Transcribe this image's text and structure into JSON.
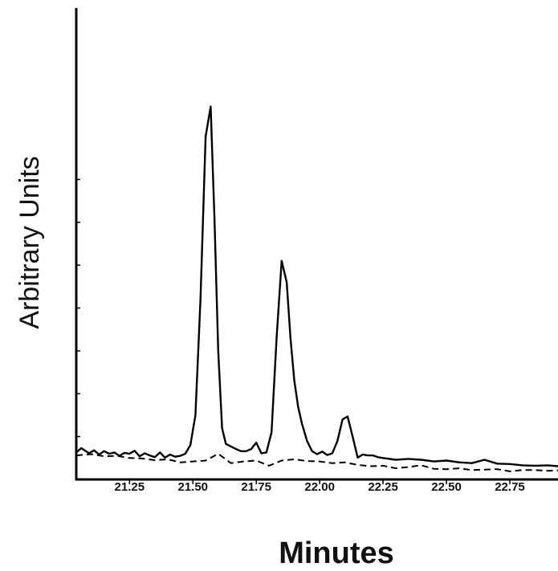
{
  "chart_data": {
    "type": "line",
    "title": "",
    "xlabel": "Minutes",
    "ylabel": "Arbitrary Units",
    "xlim": [
      21.04,
      22.94
    ],
    "ylim": [
      0,
      110
    ],
    "x_ticks": [
      "21.25",
      "21.50",
      "21.75",
      "22.00",
      "22.25",
      "22.50",
      "22.75"
    ],
    "y_tick_values": [
      10,
      20,
      30,
      40,
      50,
      60,
      70
    ],
    "y_tick_labels_shown": false,
    "grid": false,
    "legend": "none",
    "series": [
      {
        "style": "solid",
        "color": "#000000",
        "x": [
          21.04,
          21.06,
          21.09,
          21.11,
          21.13,
          21.15,
          21.17,
          21.19,
          21.21,
          21.23,
          21.25,
          21.27,
          21.29,
          21.31,
          21.33,
          21.35,
          21.37,
          21.39,
          21.41,
          21.43,
          21.45,
          21.47,
          21.49,
          21.51,
          21.53,
          21.55,
          21.57,
          21.585,
          21.6,
          21.615,
          21.63,
          21.65,
          21.67,
          21.69,
          21.71,
          21.73,
          21.75,
          21.77,
          21.79,
          21.81,
          21.83,
          21.85,
          21.87,
          21.885,
          21.9,
          21.915,
          21.93,
          21.95,
          21.97,
          21.99,
          22.01,
          22.03,
          22.05,
          22.07,
          22.09,
          22.11,
          22.13,
          22.15,
          22.17,
          22.19,
          22.21,
          22.23,
          22.25,
          22.3,
          22.35,
          22.4,
          22.45,
          22.5,
          22.55,
          22.6,
          22.65,
          22.7,
          22.75,
          22.8,
          22.85,
          22.9,
          22.94
        ],
        "values": [
          6.3,
          7.3,
          6.1,
          6.8,
          5.8,
          6.6,
          6.0,
          6.3,
          5.5,
          6.2,
          6.0,
          6.7,
          5.4,
          6.1,
          5.6,
          5.2,
          6.3,
          5.1,
          5.8,
          5.3,
          5.5,
          6.0,
          8.0,
          15.0,
          42.0,
          80.0,
          87.0,
          61.0,
          30.0,
          12.0,
          8.3,
          7.7,
          7.1,
          6.6,
          6.6,
          7.1,
          8.6,
          6.1,
          6.3,
          11.0,
          33.0,
          51.0,
          46.0,
          33.0,
          23.0,
          17.0,
          13.0,
          9.0,
          6.6,
          5.9,
          6.5,
          5.7,
          6.1,
          9.0,
          14.0,
          14.7,
          10.0,
          5.1,
          5.8,
          5.6,
          5.6,
          5.2,
          5.0,
          4.6,
          4.8,
          4.6,
          4.2,
          4.4,
          4.0,
          3.8,
          4.6,
          3.7,
          3.6,
          3.3,
          3.2,
          3.3,
          3.1
        ]
      },
      {
        "style": "dashed",
        "color": "#000000",
        "x": [
          21.04,
          21.1,
          21.15,
          21.2,
          21.25,
          21.3,
          21.35,
          21.4,
          21.45,
          21.5,
          21.55,
          21.6,
          21.65,
          21.7,
          21.75,
          21.8,
          21.85,
          21.9,
          21.95,
          22.0,
          22.05,
          22.1,
          22.15,
          22.2,
          22.25,
          22.3,
          22.35,
          22.4,
          22.45,
          22.5,
          22.55,
          22.6,
          22.65,
          22.7,
          22.75,
          22.8,
          22.85,
          22.9,
          22.94
        ],
        "values": [
          5.6,
          5.9,
          5.4,
          5.5,
          5.0,
          4.9,
          4.5,
          4.7,
          4.0,
          4.2,
          4.4,
          6.0,
          3.8,
          4.2,
          4.4,
          3.2,
          4.4,
          4.7,
          4.3,
          4.2,
          3.8,
          4.0,
          3.4,
          3.1,
          3.2,
          2.6,
          2.9,
          3.3,
          2.5,
          2.4,
          2.6,
          2.2,
          2.3,
          2.4,
          1.9,
          2.2,
          2.2,
          2.0,
          2.1
        ]
      }
    ]
  }
}
